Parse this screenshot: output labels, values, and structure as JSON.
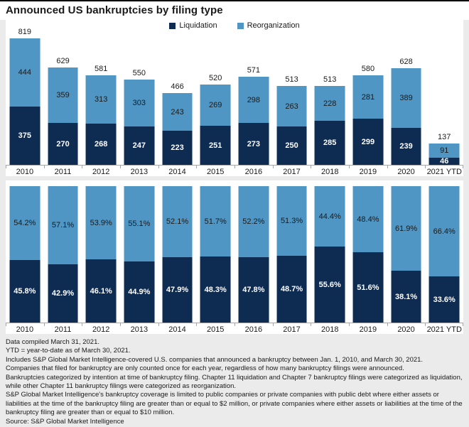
{
  "title": "Announced US bankruptcies by filing type",
  "legend": {
    "liquidation": "Liquidation",
    "reorganization": "Reorganization"
  },
  "colors": {
    "liquidation": "#0e2b52",
    "reorganization": "#4f96c4",
    "background": "#ebebeb",
    "panel": "#ffffff",
    "axis": "#a6a6a6",
    "top_rule": "#000000"
  },
  "chart_data": [
    {
      "type": "bar",
      "stacked": true,
      "value_format": "count",
      "title": "",
      "xlabel": "",
      "ylabel": "",
      "ylim": [
        0,
        819
      ],
      "grid": false,
      "legend_position": "top-center",
      "categories": [
        "2010",
        "2011",
        "2012",
        "2013",
        "2014",
        "2015",
        "2016",
        "2017",
        "2018",
        "2019",
        "2020",
        "2021 YTD"
      ],
      "series": [
        {
          "name": "Liquidation",
          "values": [
            375,
            270,
            268,
            247,
            223,
            251,
            273,
            250,
            285,
            299,
            239,
            46
          ]
        },
        {
          "name": "Reorganization",
          "values": [
            444,
            359,
            313,
            303,
            243,
            269,
            298,
            263,
            228,
            281,
            389,
            91
          ]
        }
      ],
      "totals": [
        819,
        629,
        581,
        550,
        466,
        520,
        571,
        513,
        513,
        580,
        628,
        137
      ]
    },
    {
      "type": "bar",
      "stacked": true,
      "value_format": "percent",
      "title": "",
      "xlabel": "",
      "ylabel": "",
      "ylim": [
        0,
        100
      ],
      "grid": false,
      "categories": [
        "2010",
        "2011",
        "2012",
        "2013",
        "2014",
        "2015",
        "2016",
        "2017",
        "2018",
        "2019",
        "2020",
        "2021 YTD"
      ],
      "series": [
        {
          "name": "Liquidation",
          "values": [
            45.8,
            42.9,
            46.1,
            44.9,
            47.9,
            48.3,
            47.8,
            48.7,
            55.6,
            51.6,
            38.1,
            33.6
          ]
        },
        {
          "name": "Reorganization",
          "values": [
            54.2,
            57.1,
            53.9,
            55.1,
            52.1,
            51.7,
            52.2,
            51.3,
            44.4,
            48.4,
            61.9,
            66.4
          ]
        }
      ]
    }
  ],
  "footnotes": [
    "Data compiled March 31, 2021.",
    "YTD = year-to-date as of March 30, 2021.",
    "Includes S&P Global Market Intelligence-covered U.S. companies that announced a bankruptcy between Jan. 1, 2010, and March 30, 2021.",
    "Companies that filed for bankruptcy are only counted once for each year, regardless of how many bankruptcy filings were announced.",
    "Bankruptcies categorized by intention at time of bankruptcy filing. Chapter 11 liquidation and Chapter 7 bankruptcy filings were categorized as liquidation, while other Chapter 11 bankruptcy filings were categorized as reorganization.",
    "S&P Global Market Intelligence's bankruptcy coverage is limited to public companies or private companies with public debt where either assets or liabilities at the time of the bankruptcy filing are greater than or equal to $2 million, or private companies where either assets or liabilities at the time of the bankruptcy filing are greater than or equal to $10 million.",
    "Source: S&P Global Market Intelligence"
  ]
}
